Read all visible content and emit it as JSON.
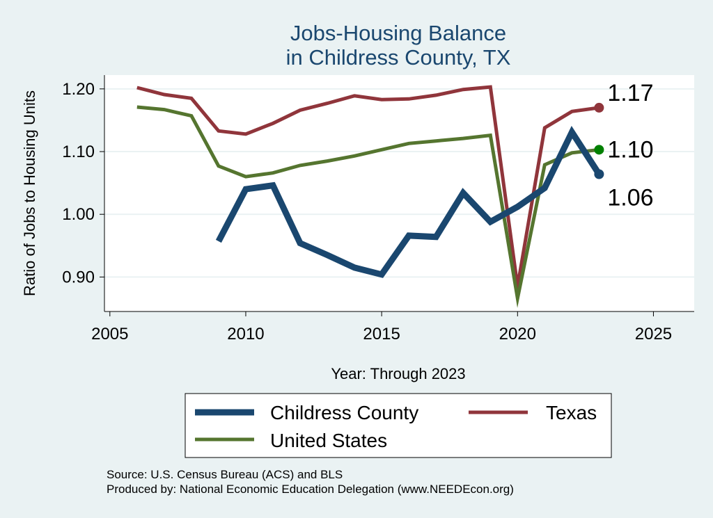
{
  "chart_data": {
    "type": "line",
    "title_lines": [
      "Jobs-Housing Balance",
      "in Childress County, TX"
    ],
    "xlabel": "Year: Through 2023",
    "ylabel": "Ratio of Jobs to Housing Units",
    "xlim": [
      2004.8,
      2026.5
    ],
    "ylim": [
      0.845,
      1.222
    ],
    "xticks": [
      2005,
      2010,
      2015,
      2020,
      2025
    ],
    "yticks": [
      0.9,
      1.0,
      1.1,
      1.2
    ],
    "ytick_labels": [
      "0.90",
      "1.00",
      "1.10",
      "1.20"
    ],
    "series": [
      {
        "name": "Childress County",
        "color": "#1a476f",
        "width": 9,
        "x": [
          2009,
          2010,
          2011,
          2012,
          2013,
          2014,
          2015,
          2016,
          2017,
          2018,
          2019,
          2020,
          2021,
          2022,
          2023
        ],
        "values": [
          0.957,
          1.04,
          1.046,
          0.954,
          0.935,
          0.915,
          0.904,
          0.966,
          0.964,
          1.034,
          0.988,
          1.012,
          1.042,
          1.131,
          1.064
        ],
        "end_label": "1.06",
        "end_marker_color": "#1a476f"
      },
      {
        "name": "Texas",
        "color": "#90353b",
        "width": 5,
        "x": [
          2006,
          2007,
          2008,
          2009,
          2010,
          2011,
          2012,
          2013,
          2014,
          2015,
          2016,
          2017,
          2018,
          2019,
          2020,
          2021,
          2022,
          2023
        ],
        "values": [
          1.202,
          1.191,
          1.185,
          1.133,
          1.128,
          1.145,
          1.166,
          1.177,
          1.189,
          1.183,
          1.184,
          1.19,
          1.199,
          1.203,
          0.885,
          1.138,
          1.164,
          1.17
        ],
        "end_label": "1.17",
        "end_marker_color": "#90353b"
      },
      {
        "name": "United States",
        "color": "#55752f",
        "width": 5,
        "x": [
          2006,
          2007,
          2008,
          2009,
          2010,
          2011,
          2012,
          2013,
          2014,
          2015,
          2016,
          2017,
          2018,
          2019,
          2020,
          2021,
          2022,
          2023
        ],
        "values": [
          1.171,
          1.167,
          1.157,
          1.077,
          1.06,
          1.066,
          1.078,
          1.085,
          1.093,
          1.103,
          1.113,
          1.117,
          1.121,
          1.126,
          0.866,
          1.079,
          1.098,
          1.103
        ],
        "end_label": "1.10",
        "end_marker_color": "#008000"
      }
    ],
    "legend_position": "bottom"
  },
  "notes": {
    "source": "Source: U.S. Census Bureau (ACS) and BLS",
    "produced_by": "Produced by: National Economic Education Delegation (www.NEEDEcon.org)"
  }
}
